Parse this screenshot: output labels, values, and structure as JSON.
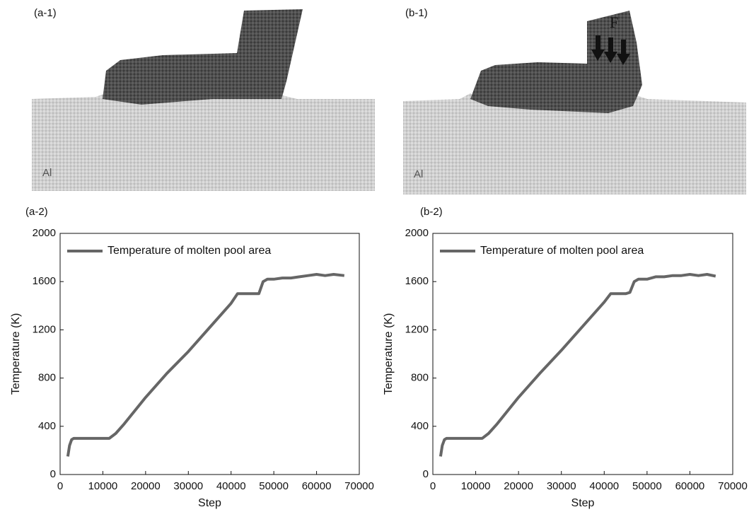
{
  "panels": [
    {
      "label": "(a-1)",
      "material": "Al"
    },
    {
      "label": "(b-1)",
      "material": "Al",
      "force_label": "F"
    }
  ],
  "chart_data": [
    {
      "type": "line",
      "panel_label": "(a-2)",
      "xlabel": "Step",
      "ylabel": "Temperature (K)",
      "x": [
        1800,
        2200,
        2700,
        3200,
        4000,
        6000,
        8000,
        10000,
        11500,
        13000,
        15000,
        20000,
        25000,
        30000,
        35000,
        40000,
        41500,
        43000,
        45000,
        46500,
        47500,
        48500,
        50000,
        52000,
        54000,
        56000,
        58000,
        60000,
        62000,
        64000,
        66500
      ],
      "series": [
        {
          "name": "Temperature of molten pool area",
          "color": "#666666",
          "values": [
            150,
            240,
            290,
            300,
            300,
            300,
            300,
            300,
            300,
            340,
            420,
            640,
            840,
            1020,
            1220,
            1420,
            1500,
            1500,
            1500,
            1500,
            1600,
            1620,
            1620,
            1630,
            1630,
            1640,
            1650,
            1660,
            1650,
            1660,
            1650
          ]
        }
      ],
      "xlim": [
        0,
        70000
      ],
      "xticks": [
        0,
        10000,
        20000,
        30000,
        40000,
        50000,
        60000,
        70000
      ],
      "ylim": [
        0,
        2000
      ],
      "yticks": [
        0,
        400,
        800,
        1200,
        1600,
        2000
      ],
      "legend": "upper left"
    },
    {
      "type": "line",
      "panel_label": "(b-2)",
      "xlabel": "Step",
      "ylabel": "Temperature (K)",
      "x": [
        1800,
        2200,
        2700,
        3200,
        4000,
        6000,
        8000,
        10000,
        11500,
        13000,
        15000,
        20000,
        25000,
        30000,
        35000,
        40000,
        41500,
        43000,
        45000,
        46000,
        47000,
        48000,
        50000,
        52000,
        54000,
        56000,
        58000,
        60000,
        62000,
        64000,
        66000
      ],
      "series": [
        {
          "name": "Temperature of molten pool area",
          "color": "#666666",
          "values": [
            150,
            240,
            290,
            300,
            300,
            300,
            300,
            300,
            300,
            340,
            420,
            640,
            840,
            1030,
            1230,
            1430,
            1500,
            1500,
            1500,
            1510,
            1600,
            1620,
            1620,
            1640,
            1640,
            1650,
            1650,
            1660,
            1650,
            1660,
            1645
          ]
        }
      ],
      "xlim": [
        0,
        70000
      ],
      "xticks": [
        0,
        10000,
        20000,
        30000,
        40000,
        50000,
        60000,
        70000
      ],
      "ylim": [
        0,
        2000
      ],
      "yticks": [
        0,
        400,
        800,
        1200,
        1600,
        2000
      ],
      "legend": "upper left"
    }
  ]
}
